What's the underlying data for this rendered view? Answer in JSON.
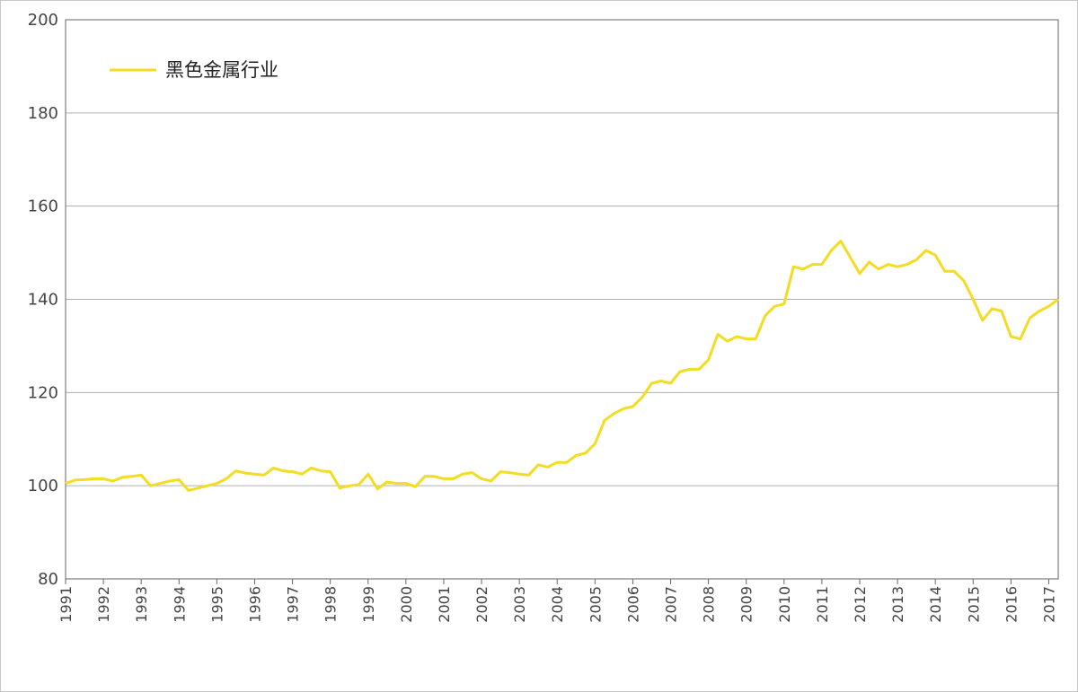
{
  "chart_data": {
    "type": "line",
    "x": [
      1991,
      1991.25,
      1991.5,
      1991.75,
      1992,
      1992.25,
      1992.5,
      1992.75,
      1993,
      1993.25,
      1993.5,
      1993.75,
      1994,
      1994.25,
      1994.5,
      1994.75,
      1995,
      1995.25,
      1995.5,
      1995.75,
      1996,
      1996.25,
      1996.5,
      1996.75,
      1997,
      1997.25,
      1997.5,
      1997.75,
      1998,
      1998.25,
      1998.5,
      1998.75,
      1999,
      1999.25,
      1999.5,
      1999.75,
      2000,
      2000.25,
      2000.5,
      2000.75,
      2001,
      2001.25,
      2001.5,
      2001.75,
      2002,
      2002.25,
      2002.5,
      2002.75,
      2003,
      2003.25,
      2003.5,
      2003.75,
      2004,
      2004.25,
      2004.5,
      2004.75,
      2005,
      2005.25,
      2005.5,
      2005.75,
      2006,
      2006.25,
      2006.5,
      2006.75,
      2007,
      2007.25,
      2007.5,
      2007.75,
      2008,
      2008.25,
      2008.5,
      2008.75,
      2009,
      2009.25,
      2009.5,
      2009.75,
      2010,
      2010.25,
      2010.5,
      2010.75,
      2011,
      2011.25,
      2011.5,
      2011.75,
      2012,
      2012.25,
      2012.5,
      2012.75,
      2013,
      2013.25,
      2013.5,
      2013.75,
      2014,
      2014.25,
      2014.5,
      2014.75,
      2015,
      2015.25,
      2015.5,
      2015.75,
      2016,
      2016.25,
      2016.5,
      2016.75,
      2017,
      2017.25
    ],
    "series": [
      {
        "name": "黑色金属行业",
        "color": "#f3dc22",
        "values": [
          100.5,
          101.2,
          101.3,
          101.5,
          101.5,
          101,
          101.8,
          102,
          102.3,
          100,
          100.5,
          101,
          101.3,
          99,
          99.5,
          100,
          100.5,
          101.5,
          103.2,
          102.7,
          102.5,
          102.3,
          103.8,
          103.2,
          103,
          102.5,
          103.8,
          103.2,
          103,
          99.5,
          100,
          100.2,
          102.5,
          99.3,
          100.8,
          100.5,
          100.5,
          99.8,
          102,
          102,
          101.5,
          101.5,
          102.5,
          102.8,
          101.5,
          101,
          103,
          102.8,
          102.5,
          102.3,
          104.5,
          104,
          105,
          105,
          106.5,
          107,
          109,
          114,
          115.5,
          116.5,
          117,
          119,
          122,
          122.5,
          122,
          124.5,
          125,
          125,
          127,
          132.5,
          131,
          132,
          131.5,
          131.5,
          136.5,
          138.5,
          139,
          147,
          146.5,
          147.5,
          147.5,
          150.5,
          152.5,
          149,
          145.5,
          148,
          146.5,
          147.5,
          147,
          147.5,
          148.5,
          150.5,
          149.5,
          146,
          146,
          144,
          140,
          135.5,
          138,
          137.5,
          132,
          131.5,
          136,
          137.5,
          138.5,
          140
        ]
      }
    ],
    "xlim": [
      1991,
      2017.25
    ],
    "xticks": [
      1991,
      1992,
      1993,
      1994,
      1995,
      1996,
      1997,
      1998,
      1999,
      2000,
      2001,
      2002,
      2003,
      2004,
      2005,
      2006,
      2007,
      2008,
      2009,
      2010,
      2011,
      2012,
      2013,
      2014,
      2015,
      2016,
      2017
    ],
    "ylim": [
      80,
      200
    ],
    "yticks": [
      80,
      100,
      120,
      140,
      160,
      180,
      200
    ],
    "grid": true,
    "legend": "top-left"
  }
}
